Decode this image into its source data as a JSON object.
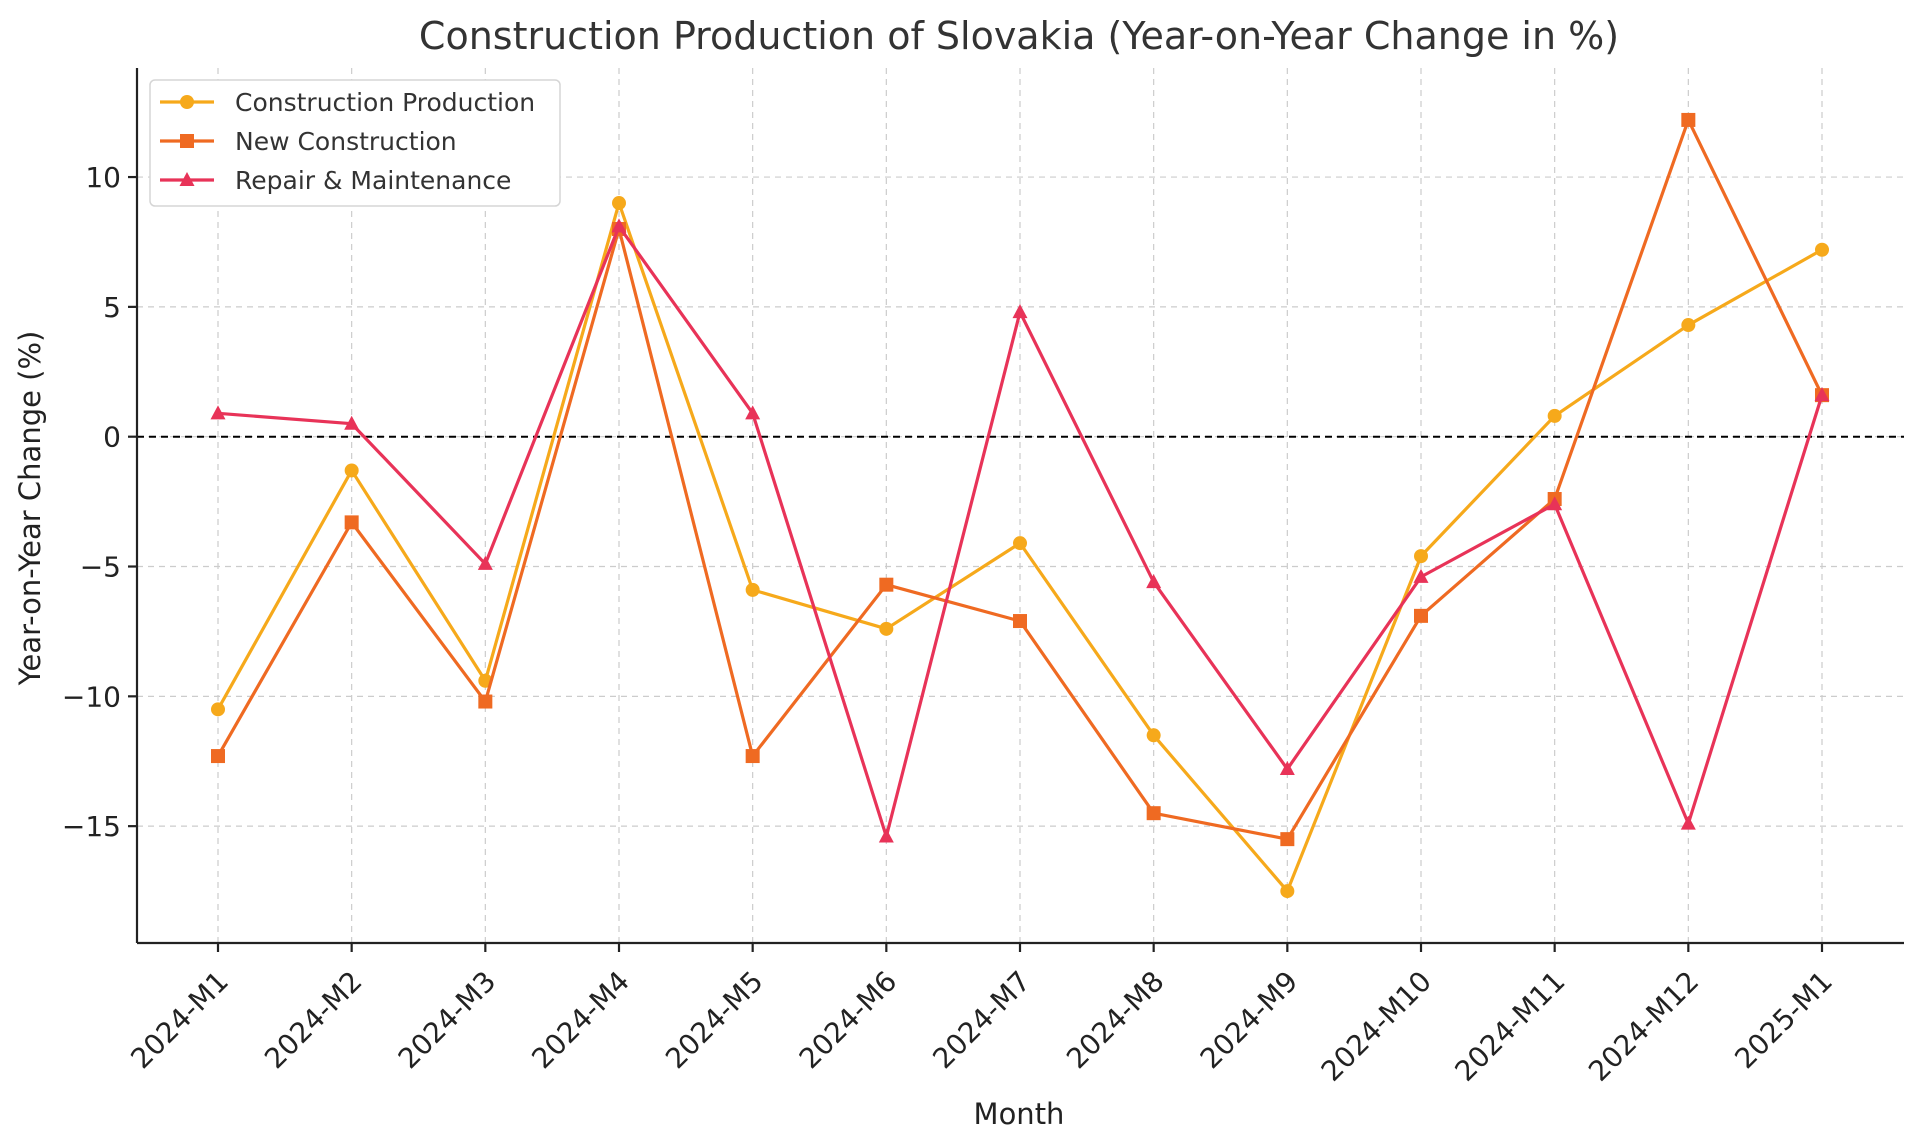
{
  "chart_data": {
    "type": "line",
    "title": "Construction Production of Slovakia (Year-on-Year Change in %)",
    "xlabel": "Month",
    "ylabel": "Year-on-Year Change (%)",
    "categories": [
      "2024-M1",
      "2024-M2",
      "2024-M3",
      "2024-M4",
      "2024-M5",
      "2024-M6",
      "2024-M7",
      "2024-M8",
      "2024-M9",
      "2024-M10",
      "2024-M11",
      "2024-M12",
      "2025-M1"
    ],
    "ylim": [
      -19.5,
      14.2
    ],
    "yticks": [
      -15,
      -10,
      -5,
      0,
      5,
      10
    ],
    "ytick_labels": [
      "−15",
      "−10",
      "−5",
      "0",
      "5",
      "10"
    ],
    "grid": true,
    "reference_line": 0,
    "legend_position": "top-left",
    "series": [
      {
        "name": "Construction Production",
        "color": "#f6a91b",
        "marker": "circle",
        "values": [
          -10.5,
          -1.3,
          -9.4,
          9.0,
          -5.9,
          -7.4,
          -4.1,
          -11.5,
          -17.5,
          -4.6,
          0.8,
          4.3,
          7.2
        ]
      },
      {
        "name": "New Construction",
        "color": "#ef6a22",
        "marker": "square",
        "values": [
          -12.3,
          -3.3,
          -10.2,
          8.0,
          -12.3,
          -5.7,
          -7.1,
          -14.5,
          -15.5,
          -6.9,
          -2.4,
          12.2,
          1.6
        ]
      },
      {
        "name": "Repair & Maintenance",
        "color": "#e83358",
        "marker": "triangle",
        "values": [
          0.9,
          0.5,
          -4.9,
          8.1,
          0.9,
          -15.4,
          4.8,
          -5.6,
          -12.8,
          -5.4,
          -2.6,
          -14.9,
          1.6
        ]
      }
    ]
  }
}
